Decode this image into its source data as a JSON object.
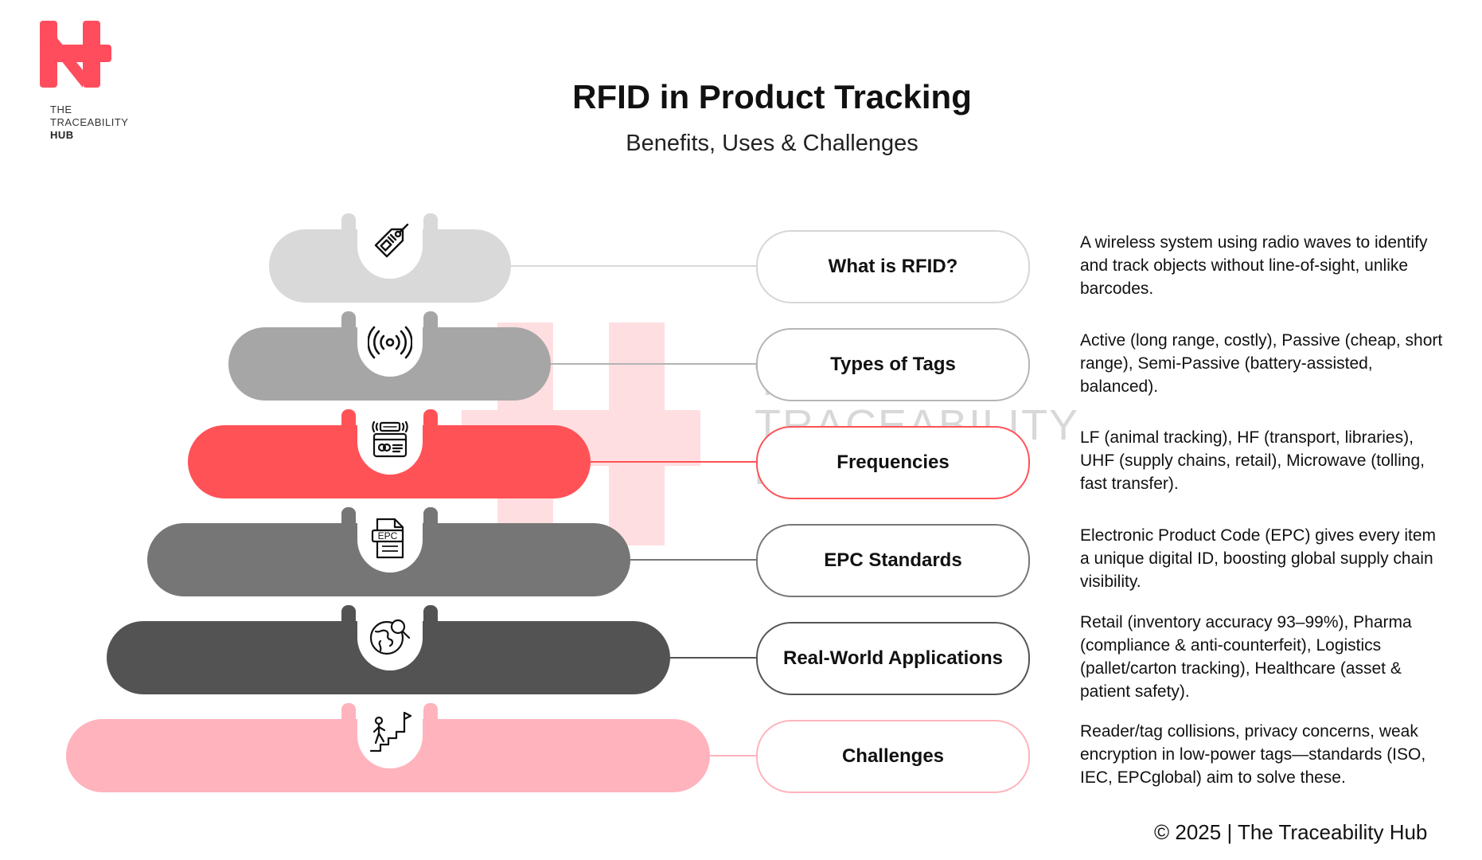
{
  "logo": {
    "line1": "THE",
    "line2": "TRACEABILITY",
    "line3": "HUB"
  },
  "header": {
    "title": "RFID in Product Tracking",
    "subtitle": "Benefits, Uses & Challenges"
  },
  "watermark": {
    "line1": "THE",
    "line2": "TRACEABILITY",
    "line3": "HUB"
  },
  "colors": {
    "brand": "#ff4d5e",
    "gray_light": "#d9d9d9",
    "gray_mid": "#a6a6a6",
    "red": "#ff5257",
    "gray_dark": "#767676",
    "charcoal": "#535353",
    "pink": "#ffb3bd"
  },
  "steps": [
    {
      "label": "What is RFID?",
      "description": "A wireless system using radio waves to identify and track objects without line-of-sight, unlike barcodes.",
      "icon": "rfid-tag-icon"
    },
    {
      "label": "Types of Tags",
      "description": "Active (long range, costly), Passive (cheap, short range), Semi-Passive (battery-assisted, balanced).",
      "icon": "radio-waves-icon"
    },
    {
      "label": "Frequencies",
      "description": "LF (animal tracking), HF (transport, libraries), UHF (supply chains, retail), Microwave (tolling, fast transfer).",
      "icon": "rfid-card-icon"
    },
    {
      "label": "EPC Standards",
      "description": "Electronic Product Code (EPC) gives every item a unique digital ID, boosting global supply chain visibility.",
      "icon": "epc-document-icon"
    },
    {
      "label": "Real-World Applications",
      "description": "Retail (inventory accuracy 93–99%), Pharma (compliance & anti-counterfeit), Logistics (pallet/carton tracking), Healthcare (asset & patient safety).",
      "icon": "globe-search-icon"
    },
    {
      "label": "Challenges",
      "description": "Reader/tag collisions, privacy concerns, weak encryption in low-power tags—standards (ISO, IEC, EPCglobal) aim to solve these.",
      "icon": "stairs-flag-icon"
    }
  ],
  "footer": {
    "text": "© 2025 | The Traceability Hub"
  }
}
